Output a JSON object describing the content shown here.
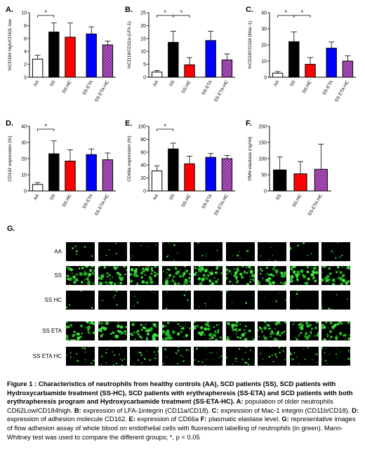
{
  "panels": [
    {
      "id": "A",
      "letter": "A.",
      "ylabel": "%CD184 high/CD62L low",
      "ymax": 10,
      "yticks": [
        0,
        2,
        4,
        6,
        8,
        10
      ],
      "categories": [
        "AA",
        "SS",
        "SS-HC",
        "SS-ETA",
        "SS ETA-HC"
      ],
      "values": [
        2.8,
        7.0,
        6.2,
        6.7,
        5.0
      ],
      "errors": [
        0.6,
        1.4,
        2.2,
        1.1,
        0.6
      ],
      "sig": [
        {
          "from": 0,
          "to": 1,
          "label": "*"
        }
      ]
    },
    {
      "id": "B",
      "letter": "B.",
      "ylabel": "%CD18/CD11a (LFA-1)",
      "ymax": 25,
      "yticks": [
        0,
        5,
        10,
        15,
        20,
        25
      ],
      "categories": [
        "AA",
        "SS",
        "SS-HC",
        "SS-ETA",
        "SS ETA-HC"
      ],
      "values": [
        2.0,
        13.5,
        4.8,
        14.2,
        6.7
      ],
      "errors": [
        0.6,
        4.3,
        2.8,
        3.6,
        2.3
      ],
      "sig": [
        {
          "from": 0,
          "to": 1,
          "label": "*"
        },
        {
          "from": 1,
          "to": 2,
          "label": "*"
        }
      ]
    },
    {
      "id": "C",
      "letter": "C.",
      "ylabel": "%CD18/CD11b (Mac-1)",
      "ymax": 40,
      "yticks": [
        0,
        10,
        20,
        30,
        40
      ],
      "categories": [
        "AA",
        "SS",
        "SS-HC",
        "SS-ETA",
        "SS ETA-HC"
      ],
      "values": [
        2.5,
        22.0,
        8.0,
        18.0,
        10.0
      ],
      "errors": [
        1.0,
        6.0,
        4.2,
        3.8,
        3.2
      ],
      "sig": [
        {
          "from": 0,
          "to": 1,
          "label": "*"
        },
        {
          "from": 1,
          "to": 2,
          "label": "*"
        }
      ]
    },
    {
      "id": "D",
      "letter": "D.",
      "ylabel": "CD162 expression (%)",
      "ymax": 40,
      "yticks": [
        0,
        10,
        20,
        30,
        40
      ],
      "categories": [
        "AA",
        "SS",
        "SS-HC",
        "SS-ETA",
        "SS ETA-HC"
      ],
      "values": [
        4.0,
        23.0,
        18.5,
        22.5,
        19.3
      ],
      "errors": [
        1.2,
        8.0,
        7.0,
        3.5,
        4.2
      ],
      "sig": [
        {
          "from": 0,
          "to": 1,
          "label": "*"
        }
      ]
    },
    {
      "id": "E",
      "letter": "E.",
      "ylabel": "CD66a expression (%)",
      "ymax": 100,
      "yticks": [
        0,
        20,
        40,
        60,
        80,
        100
      ],
      "categories": [
        "AA",
        "SS",
        "SS-HC",
        "SS-ETA",
        "SS ETA-HC"
      ],
      "values": [
        31,
        65,
        42,
        52,
        50
      ],
      "errors": [
        8,
        9,
        12,
        6,
        5
      ],
      "sig": [
        {
          "from": 0,
          "to": 1,
          "label": "*"
        }
      ]
    },
    {
      "id": "F",
      "letter": "F.",
      "ylabel": "PMN elastase (ng/ml)",
      "ymax": 200,
      "yticks": [
        0,
        50,
        100,
        150,
        200
      ],
      "categories": [
        "SS",
        "SS-HC",
        "SS-ETA-HC"
      ],
      "values": [
        65,
        53,
        67
      ],
      "errors": [
        40,
        38,
        78
      ],
      "sig": []
    }
  ],
  "colors": {
    "AA": "#ffffff",
    "SS": "#000000",
    "SS-HC": "#ff0000",
    "SS-ETA": "#0000ff",
    "SS ETA-HC": "#8f2d9e"
  },
  "g_label": "G.",
  "image_rows": [
    {
      "label": "AA",
      "density": 0.05
    },
    {
      "label": "SS",
      "density": 0.55
    },
    {
      "label": "SS HC",
      "density": 0.04
    },
    {
      "label": "SS ETA",
      "density": 0.45
    },
    {
      "label": "SS ETA HC",
      "density": 0.22
    }
  ],
  "caption": {
    "title": "Figure 1 : Characteristics of neutrophils from healthy controls (AA), SCD patients (SS), SCD patients with Hydroxycarbamide treatment (SS-HC), SCD patients with erythrapheresis (SS-ETA) and SCD patients with both erythrapheresis program and Hydroxycarbamide treatment (SS-ETA-HC). A:",
    "a_text": "population of older neutrophils CD62Low/CD184high.",
    "b_bold": "B:",
    "b_text": "expression of LFA-1integrin (CD11a/CD18).",
    "c_bold": "C:",
    "c_text": "expression of Mac-1 integrin (CD11b/CD18).",
    "d_bold": "D:",
    "d_text": "expression of adhesion molecule CD162.",
    "e_bold": "E:",
    "e_text": "expression of CD66a",
    "f_bold": "F:",
    "f_text": "plasmatic elastase level.",
    "g_bold": "G:",
    "g_text": "representative images of flow adhesion assay of whole blood on endothelial cells with fluorescent labelling of neutrophils (in green). Mann-Whitney test was used to compare the different groups; *, p < 0.05"
  }
}
